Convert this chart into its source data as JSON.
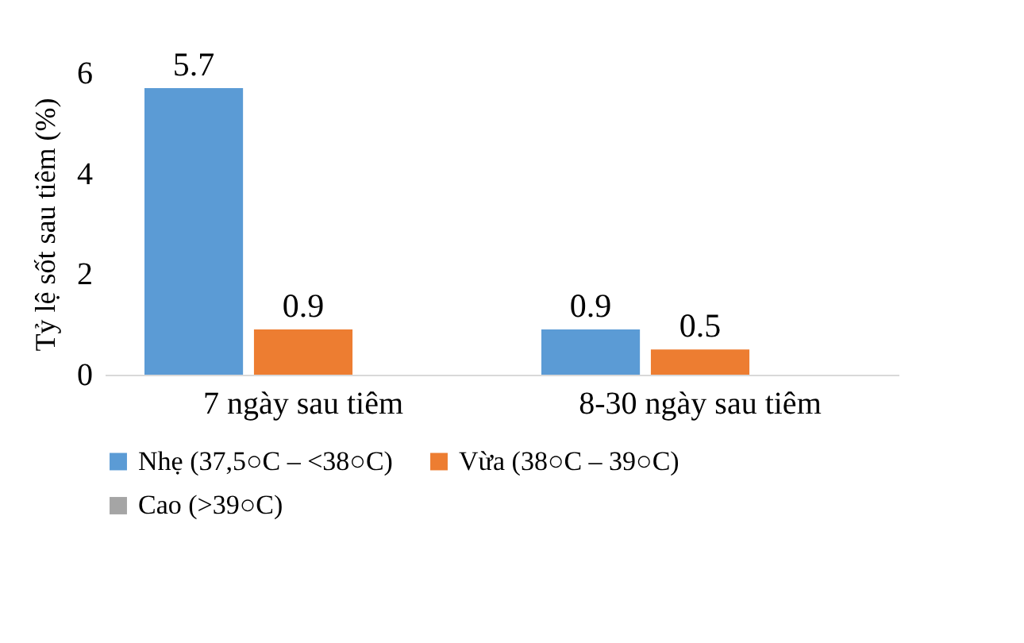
{
  "chart_data": {
    "type": "bar",
    "ylabel": "Tỷ lệ sốt sau tiêm (%)",
    "categories": [
      "7 ngày sau tiêm",
      "8-30 ngày sau tiêm"
    ],
    "series": [
      {
        "name": "Nhẹ (37,5○C – <38○C)",
        "color": "#5b9bd5",
        "values": [
          5.7,
          0.9
        ],
        "value_labels": [
          "5.7",
          "0.9"
        ]
      },
      {
        "name": "Vừa (38○C – 39○C)",
        "color": "#ed7d31",
        "values": [
          0.9,
          0.5
        ],
        "value_labels": [
          "0.9",
          "0.5"
        ]
      },
      {
        "name": "Cao (>39○C)",
        "color": "#a5a5a5",
        "values": [
          0,
          0
        ],
        "value_labels": [
          null,
          null
        ]
      }
    ],
    "ylim": [
      0,
      6
    ],
    "yticks": [
      0,
      2,
      4,
      6
    ],
    "grid": false,
    "legend": "bottom"
  }
}
